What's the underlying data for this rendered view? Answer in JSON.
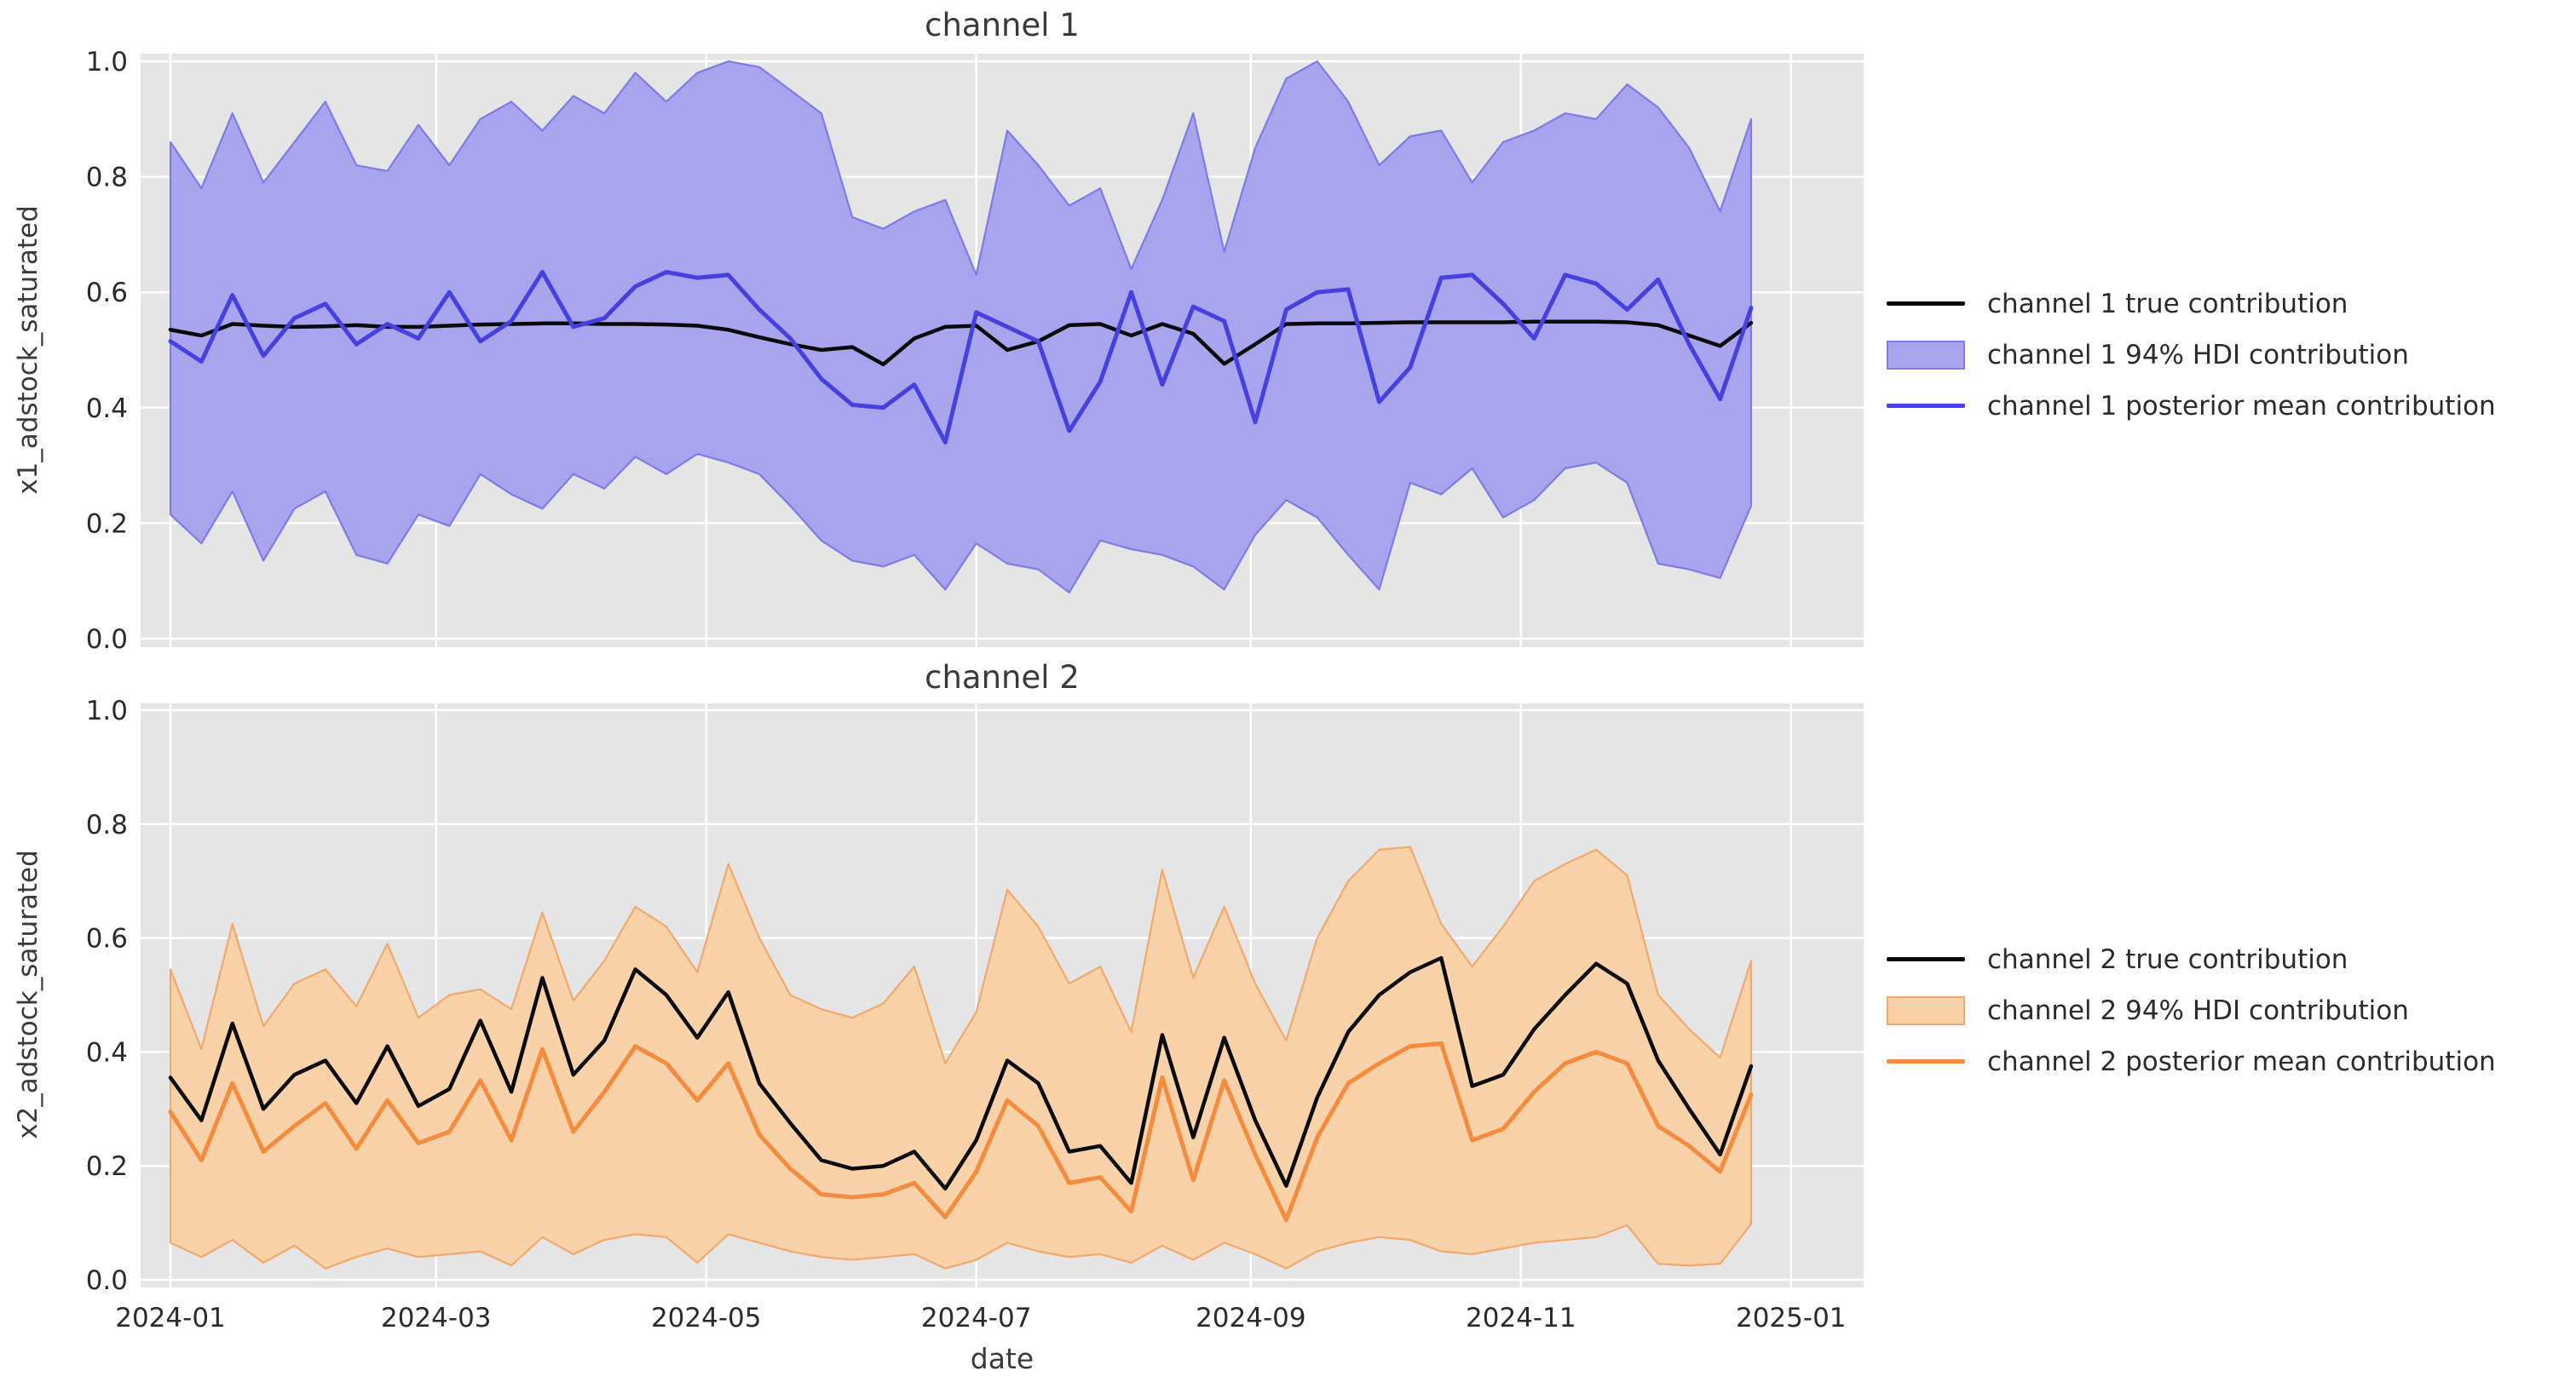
{
  "figure": {
    "background": "#ffffff",
    "panel_color": "#e5e5e5",
    "grid_color": "#ffffff",
    "x_label": "date",
    "x_tick_labels": [
      "2024-01",
      "2024-03",
      "2024-05",
      "2024-07",
      "2024-09",
      "2024-11",
      "2025-01"
    ],
    "x_tick_day_offsets": [
      0,
      60,
      121,
      182,
      244,
      305,
      366
    ],
    "y_tick_labels": [
      "0.0",
      "0.2",
      "0.4",
      "0.6",
      "0.8",
      "1.0"
    ],
    "y_tick_values": [
      0.0,
      0.2,
      0.4,
      0.6,
      0.8,
      1.0
    ]
  },
  "chart_data": [
    {
      "type": "line",
      "title": "channel 1",
      "ylabel": "x1_adstock_saturated",
      "xlabel": "",
      "ylim": [
        0.0,
        1.0
      ],
      "x_start": "2024-01-01",
      "x_freq_days": 7,
      "n_points": 52,
      "grid": true,
      "legend_position": "right",
      "colors": {
        "true_line": "#0a0a0a",
        "mean_line": "#4640e0",
        "band_fill": "#a8a4ed",
        "band_edge": "#7f7ae9"
      },
      "legend": [
        {
          "label": "channel 1 true contribution",
          "swatch": "line",
          "color": "#0a0a0a"
        },
        {
          "label": "channel 1 94% HDI contribution",
          "swatch": "patch",
          "color": "#a8a4ed",
          "edge": "#7f7ae9"
        },
        {
          "label": "channel 1 posterior mean contribution",
          "swatch": "line",
          "color": "#4640e0"
        }
      ],
      "series": [
        {
          "name": "true contribution",
          "values": [
            0.535,
            0.525,
            0.545,
            0.542,
            0.54,
            0.541,
            0.543,
            0.54,
            0.54,
            0.542,
            0.544,
            0.545,
            0.546,
            0.546,
            0.545,
            0.545,
            0.544,
            0.542,
            0.535,
            0.522,
            0.51,
            0.5,
            0.505,
            0.475,
            0.52,
            0.54,
            0.542,
            0.5,
            0.515,
            0.543,
            0.545,
            0.525,
            0.545,
            0.528,
            0.476,
            0.51,
            0.545,
            0.546,
            0.546,
            0.547,
            0.548,
            0.548,
            0.548,
            0.548,
            0.549,
            0.549,
            0.549,
            0.548,
            0.543,
            0.525,
            0.507,
            0.547
          ]
        },
        {
          "name": "posterior mean contribution",
          "values": [
            0.515,
            0.48,
            0.595,
            0.49,
            0.555,
            0.58,
            0.51,
            0.545,
            0.52,
            0.6,
            0.515,
            0.55,
            0.635,
            0.54,
            0.555,
            0.61,
            0.635,
            0.625,
            0.63,
            0.57,
            0.52,
            0.45,
            0.405,
            0.4,
            0.44,
            0.34,
            0.565,
            0.54,
            0.515,
            0.36,
            0.445,
            0.6,
            0.44,
            0.575,
            0.55,
            0.375,
            0.57,
            0.6,
            0.605,
            0.41,
            0.47,
            0.625,
            0.63,
            0.58,
            0.52,
            0.63,
            0.615,
            0.57,
            0.622,
            0.51,
            0.415,
            0.573
          ]
        },
        {
          "name": "94% HDI lower",
          "values": [
            0.215,
            0.165,
            0.255,
            0.135,
            0.225,
            0.255,
            0.145,
            0.13,
            0.215,
            0.195,
            0.285,
            0.25,
            0.225,
            0.285,
            0.26,
            0.315,
            0.285,
            0.32,
            0.305,
            0.285,
            0.23,
            0.17,
            0.135,
            0.125,
            0.145,
            0.085,
            0.165,
            0.13,
            0.12,
            0.08,
            0.17,
            0.155,
            0.145,
            0.125,
            0.085,
            0.18,
            0.24,
            0.21,
            0.145,
            0.085,
            0.27,
            0.25,
            0.295,
            0.21,
            0.24,
            0.295,
            0.305,
            0.27,
            0.13,
            0.12,
            0.105,
            0.23
          ]
        },
        {
          "name": "94% HDI upper",
          "values": [
            0.86,
            0.78,
            0.91,
            0.79,
            0.86,
            0.93,
            0.82,
            0.81,
            0.89,
            0.82,
            0.9,
            0.93,
            0.88,
            0.94,
            0.91,
            0.98,
            0.93,
            0.98,
            1.0,
            0.99,
            0.95,
            0.91,
            0.73,
            0.71,
            0.74,
            0.76,
            0.63,
            0.88,
            0.82,
            0.75,
            0.78,
            0.64,
            0.76,
            0.91,
            0.67,
            0.85,
            0.97,
            1.0,
            0.93,
            0.82,
            0.87,
            0.88,
            0.79,
            0.86,
            0.88,
            0.91,
            0.9,
            0.96,
            0.92,
            0.85,
            0.74,
            0.9
          ]
        }
      ]
    },
    {
      "type": "line",
      "title": "channel 2",
      "ylabel": "x2_adstock_saturated",
      "xlabel": "date",
      "ylim": [
        0.0,
        1.0
      ],
      "x_start": "2024-01-01",
      "x_freq_days": 7,
      "n_points": 52,
      "grid": true,
      "legend_position": "right",
      "colors": {
        "true_line": "#0a0a0a",
        "mean_line": "#f68a3d",
        "band_fill": "#f9d2a9",
        "band_edge": "#f3a869"
      },
      "legend": [
        {
          "label": "channel 2 true contribution",
          "swatch": "line",
          "color": "#0a0a0a"
        },
        {
          "label": "channel 2 94% HDI contribution",
          "swatch": "patch",
          "color": "#f9d2a9",
          "edge": "#f3a869"
        },
        {
          "label": "channel 2 posterior mean contribution",
          "swatch": "line",
          "color": "#f68a3d"
        }
      ],
      "series": [
        {
          "name": "true contribution",
          "values": [
            0.355,
            0.28,
            0.45,
            0.3,
            0.36,
            0.385,
            0.31,
            0.41,
            0.305,
            0.335,
            0.455,
            0.33,
            0.53,
            0.36,
            0.42,
            0.545,
            0.5,
            0.425,
            0.505,
            0.345,
            0.275,
            0.21,
            0.195,
            0.2,
            0.225,
            0.16,
            0.245,
            0.385,
            0.345,
            0.225,
            0.235,
            0.17,
            0.43,
            0.25,
            0.425,
            0.28,
            0.165,
            0.32,
            0.435,
            0.5,
            0.54,
            0.565,
            0.34,
            0.36,
            0.44,
            0.5,
            0.555,
            0.52,
            0.385,
            0.3,
            0.22,
            0.375
          ]
        },
        {
          "name": "posterior mean contribution",
          "values": [
            0.295,
            0.21,
            0.345,
            0.225,
            0.27,
            0.31,
            0.23,
            0.315,
            0.24,
            0.26,
            0.35,
            0.245,
            0.405,
            0.26,
            0.33,
            0.41,
            0.38,
            0.315,
            0.38,
            0.255,
            0.195,
            0.15,
            0.145,
            0.15,
            0.17,
            0.11,
            0.19,
            0.315,
            0.27,
            0.17,
            0.18,
            0.12,
            0.355,
            0.175,
            0.35,
            0.22,
            0.105,
            0.25,
            0.345,
            0.38,
            0.41,
            0.415,
            0.245,
            0.265,
            0.33,
            0.38,
            0.4,
            0.38,
            0.27,
            0.235,
            0.19,
            0.325
          ]
        },
        {
          "name": "94% HDI lower",
          "values": [
            0.065,
            0.04,
            0.07,
            0.03,
            0.06,
            0.02,
            0.04,
            0.055,
            0.04,
            0.045,
            0.05,
            0.025,
            0.075,
            0.045,
            0.07,
            0.08,
            0.075,
            0.03,
            0.08,
            0.065,
            0.05,
            0.04,
            0.035,
            0.04,
            0.045,
            0.02,
            0.035,
            0.065,
            0.05,
            0.04,
            0.045,
            0.03,
            0.06,
            0.035,
            0.065,
            0.045,
            0.02,
            0.05,
            0.065,
            0.075,
            0.07,
            0.05,
            0.045,
            0.055,
            0.065,
            0.07,
            0.075,
            0.096,
            0.028,
            0.025,
            0.028,
            0.098
          ]
        },
        {
          "name": "94% HDI upper",
          "values": [
            0.545,
            0.405,
            0.625,
            0.445,
            0.52,
            0.545,
            0.48,
            0.59,
            0.46,
            0.5,
            0.51,
            0.475,
            0.645,
            0.49,
            0.56,
            0.655,
            0.62,
            0.54,
            0.73,
            0.6,
            0.5,
            0.475,
            0.46,
            0.485,
            0.55,
            0.38,
            0.47,
            0.685,
            0.62,
            0.52,
            0.55,
            0.435,
            0.72,
            0.53,
            0.655,
            0.52,
            0.42,
            0.6,
            0.7,
            0.755,
            0.76,
            0.625,
            0.55,
            0.62,
            0.7,
            0.73,
            0.755,
            0.71,
            0.5,
            0.44,
            0.39,
            0.56
          ]
        }
      ]
    }
  ]
}
